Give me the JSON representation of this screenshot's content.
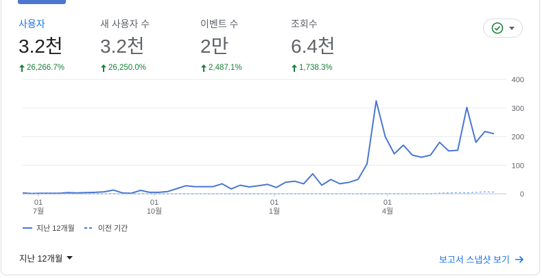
{
  "metrics": [
    {
      "label": "사용자",
      "value": "3.2천",
      "change": "26,266.7%",
      "active": true
    },
    {
      "label": "새 사용자 수",
      "value": "3.2천",
      "change": "26,250.0%",
      "active": false
    },
    {
      "label": "이벤트 수",
      "value": "2만",
      "change": "2,487.1%",
      "active": false
    },
    {
      "label": "조회수",
      "value": "6.4천",
      "change": "1,738.3%",
      "active": false
    }
  ],
  "compare_icon": "check-circle-icon",
  "colors": {
    "primary_series": "#4a76cf",
    "previous_series": "#8ab4f8",
    "positive": "#188038",
    "link": "#1a73e8"
  },
  "chart_data": {
    "type": "line",
    "yticks": [
      "400",
      "300",
      "200",
      "100",
      "0"
    ],
    "ylim": [
      0,
      400
    ],
    "x_tick_labels": [
      {
        "day": "01",
        "month": "7월"
      },
      {
        "day": "01",
        "month": "10월"
      },
      {
        "day": "01",
        "month": "1월"
      },
      {
        "day": "01",
        "month": "4월"
      }
    ],
    "series": [
      {
        "name": "지난 12개월",
        "style": "solid",
        "values": [
          3,
          1,
          2,
          2,
          2,
          4,
          3,
          4,
          5,
          7,
          13,
          3,
          2,
          12,
          5,
          5,
          8,
          18,
          28,
          25,
          25,
          25,
          35,
          17,
          30,
          24,
          28,
          33,
          22,
          40,
          44,
          35,
          70,
          30,
          50,
          35,
          40,
          50,
          105,
          325,
          200,
          140,
          170,
          135,
          128,
          135,
          180,
          150,
          152,
          302,
          180,
          218,
          210
        ]
      },
      {
        "name": "이전 기간",
        "style": "dashed",
        "values": [
          0,
          0,
          0,
          0,
          0,
          0,
          0,
          0,
          0,
          0,
          0,
          0,
          0,
          0,
          0,
          0,
          0,
          0,
          0,
          0,
          0,
          0,
          0,
          0,
          0,
          0,
          0,
          0,
          0,
          0,
          0,
          0,
          0,
          0,
          0,
          0,
          0,
          0,
          0,
          0,
          0,
          0,
          0,
          0,
          0,
          0,
          2,
          3,
          4,
          3,
          5,
          7,
          6
        ]
      }
    ]
  },
  "footer": {
    "range_label": "지난 12개월",
    "report_link": "보고서 스냅샷 보기"
  }
}
